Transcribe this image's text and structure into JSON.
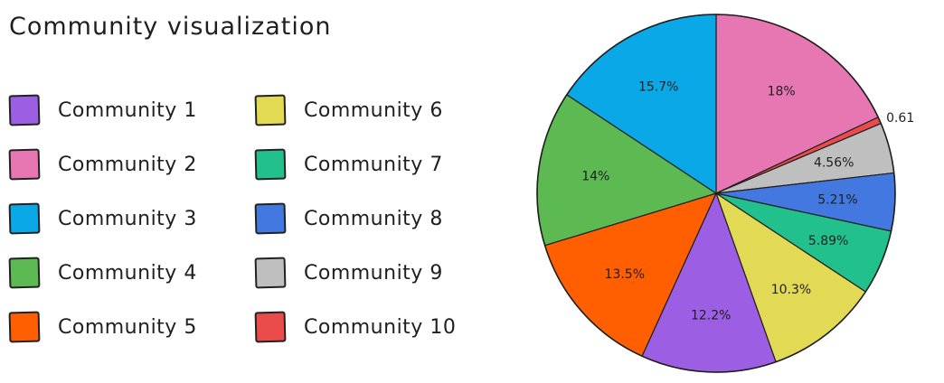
{
  "chart_data": {
    "type": "pie",
    "title": "Community visualization",
    "legend_position": "left",
    "slices": [
      {
        "label": "Community 1",
        "value": 12.2,
        "text": "12.2%",
        "color": "#9c5fe3"
      },
      {
        "label": "Community 2",
        "value": 18.0,
        "text": "18%",
        "color": "#e677b3"
      },
      {
        "label": "Community 3",
        "value": 15.7,
        "text": "15.7%",
        "color": "#0aa8e6"
      },
      {
        "label": "Community 4",
        "value": 14.0,
        "text": "14%",
        "color": "#5dba52"
      },
      {
        "label": "Community 5",
        "value": 13.5,
        "text": "13.5%",
        "color": "#ff5f00"
      },
      {
        "label": "Community 6",
        "value": 10.3,
        "text": "10.3%",
        "color": "#e2da55"
      },
      {
        "label": "Community 7",
        "value": 5.89,
        "text": "5.89%",
        "color": "#22c08c"
      },
      {
        "label": "Community 8",
        "value": 5.21,
        "text": "5.21%",
        "color": "#4378e0"
      },
      {
        "label": "Community 9",
        "value": 4.56,
        "text": "4.56%",
        "color": "#bfbfbf"
      },
      {
        "label": "Community 10",
        "value": 0.615,
        "text": "0.615%",
        "color": "#ea4b4b"
      }
    ],
    "clockwise_order": [
      "Community 2",
      "Community 10",
      "Community 9",
      "Community 8",
      "Community 7",
      "Community 6",
      "Community 1",
      "Community 5",
      "Community 4",
      "Community 3"
    ]
  }
}
